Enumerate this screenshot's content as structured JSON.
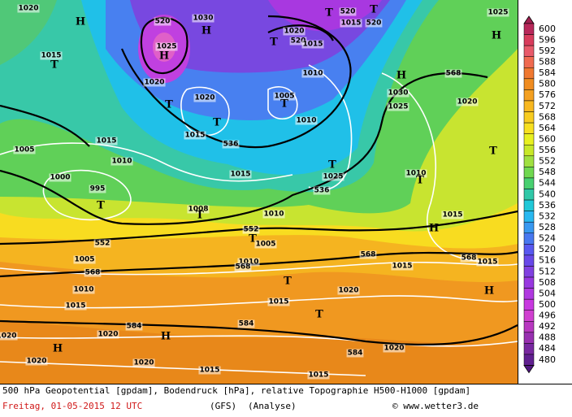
{
  "map": {
    "labels": [
      "1020",
      "H",
      "1015",
      "T",
      "520",
      "1025",
      "H",
      "1020",
      "1030",
      "H",
      "T",
      "1020",
      "520",
      "T",
      "520",
      "1015",
      "520",
      "T",
      "1015",
      "1010",
      "H",
      "568",
      "1025",
      "H",
      "1005",
      "T",
      "1020",
      "T",
      "T",
      "1015",
      "1010",
      "1030",
      "1025",
      "1020",
      "536",
      "1015",
      "1005",
      "1010",
      "1015",
      "T",
      "1025",
      "536",
      "1010",
      "T",
      "T",
      "1000",
      "995",
      "T",
      "1008",
      "T",
      "1010",
      "552",
      "T",
      "552",
      "1005",
      "H",
      "1015",
      "1005",
      "1010",
      "568",
      "568",
      "1015",
      "568",
      "1015",
      "568",
      "T",
      "H",
      "1010",
      "1020",
      "1015",
      "1015",
      "T",
      "584",
      "584",
      "1020",
      "1020",
      "H",
      "H",
      "584",
      "1020",
      "1020",
      "1020",
      "1015",
      "1015"
    ]
  },
  "legend": {
    "values": [
      600,
      596,
      592,
      588,
      584,
      580,
      576,
      572,
      568,
      564,
      560,
      556,
      552,
      548,
      544,
      540,
      536,
      532,
      528,
      524,
      520,
      516,
      512,
      508,
      504,
      500,
      496,
      492,
      488,
      484,
      480
    ],
    "colors": [
      "#b8285a",
      "#d83c5c",
      "#e85a6a",
      "#f06a50",
      "#f07830",
      "#f08c20",
      "#f4a020",
      "#f8b820",
      "#f8cc20",
      "#f8e020",
      "#e8f020",
      "#c8e828",
      "#a0e040",
      "#70d850",
      "#48d070",
      "#30c8a8",
      "#20c8d8",
      "#28b8f0",
      "#3898f0",
      "#4878f0",
      "#5858f0",
      "#6848e8",
      "#8040e0",
      "#9838e0",
      "#b038e0",
      "#c838e0",
      "#d040d0",
      "#b838c0",
      "#9830b0",
      "#7828a0",
      "#602090"
    ]
  },
  "footer": {
    "line1": "500 hPa Geopotential [gpdam], Bodendruck [hPa], relative Topographie H500-H1000 [gpdam]",
    "date": "Freitag, 01-05-2015   12 UTC",
    "model": "(GFS)",
    "run": "(Analyse)",
    "source": "© www.wetter3.de"
  }
}
